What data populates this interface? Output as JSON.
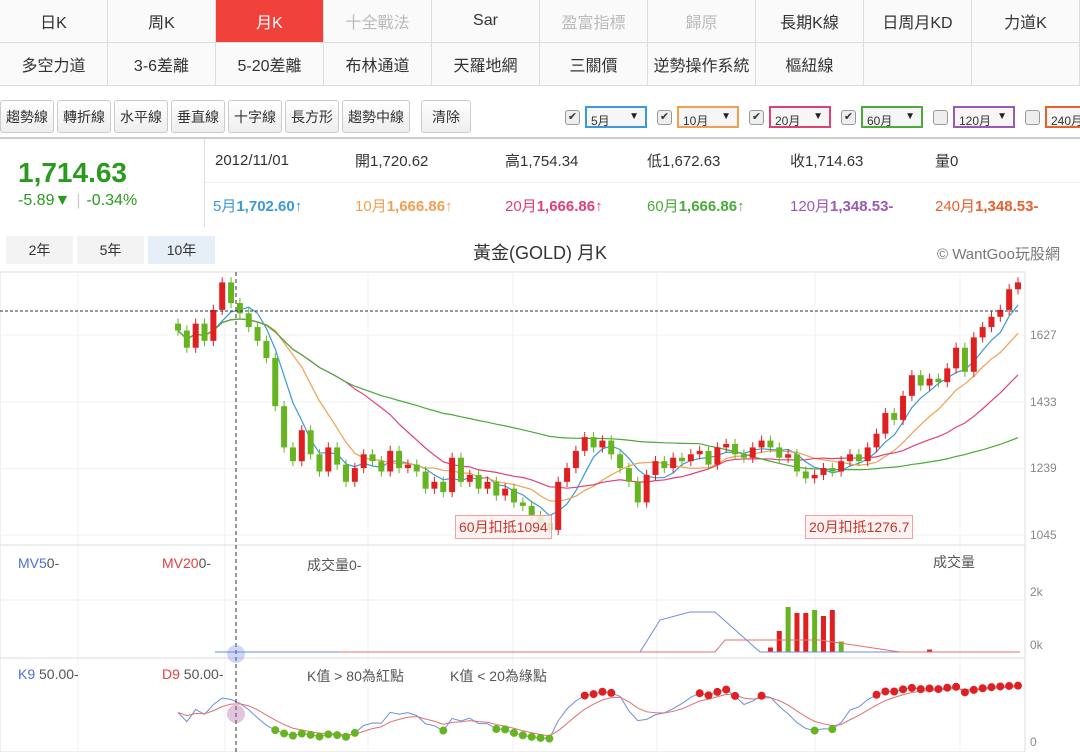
{
  "tabs": [
    {
      "label": "日K",
      "state": ""
    },
    {
      "label": "周K",
      "state": ""
    },
    {
      "label": "月K",
      "state": "active"
    },
    {
      "label": "十全戰法",
      "state": "disabled"
    },
    {
      "label": "Sar",
      "state": ""
    },
    {
      "label": "盈富指標",
      "state": "disabled"
    },
    {
      "label": "歸原",
      "state": "disabled"
    },
    {
      "label": "長期K線",
      "state": ""
    },
    {
      "label": "日周月KD",
      "state": ""
    },
    {
      "label": "力道K",
      "state": ""
    },
    {
      "label": "多空力道",
      "state": ""
    },
    {
      "label": "3-6差離",
      "state": ""
    },
    {
      "label": "5-20差離",
      "state": ""
    },
    {
      "label": "布林通道",
      "state": ""
    },
    {
      "label": "天羅地網",
      "state": ""
    },
    {
      "label": "三關價",
      "state": ""
    },
    {
      "label": "逆勢操作系統",
      "state": ""
    },
    {
      "label": "樞紐線",
      "state": ""
    },
    {
      "label": "",
      "state": "empty"
    },
    {
      "label": "",
      "state": "empty"
    }
  ],
  "tools": [
    "趨勢線",
    "轉折線",
    "水平線",
    "垂直線",
    "十字線",
    "長方形",
    "趨勢中線"
  ],
  "clear_label": "清除",
  "ma_selects": [
    {
      "label": "5月",
      "checked": true,
      "color": "#3a9ad9"
    },
    {
      "label": "10月",
      "checked": true,
      "color": "#f0a050"
    },
    {
      "label": "20月",
      "checked": true,
      "color": "#e0407a"
    },
    {
      "label": "60月",
      "checked": true,
      "color": "#4aaa3a"
    },
    {
      "label": "120月",
      "checked": false,
      "color": "#9b59b6"
    },
    {
      "label": "240月",
      "checked": false,
      "color": "#e8602c"
    }
  ],
  "quote": {
    "price": "1,714.63",
    "change": "-5.89▼",
    "change_pct": "-0.34%",
    "date": "2012/11/01",
    "open_label": "開",
    "open": "1,720.62",
    "high_label": "高",
    "high": "1,754.34",
    "low_label": "低",
    "low": "1,672.63",
    "close_label": "收",
    "close": "1,714.63",
    "vol_label": "量",
    "vol": "0"
  },
  "ma_values": [
    {
      "label": "5月",
      "value": "1,702.60↑",
      "color": "#3a9ad9"
    },
    {
      "label": "10月",
      "value": "1,666.86↑",
      "color": "#f0a050"
    },
    {
      "label": "20月",
      "value": "1,666.86↑",
      "color": "#e0407a"
    },
    {
      "label": "60月",
      "value": "1,666.86↑",
      "color": "#4aaa3a"
    },
    {
      "label": "120月",
      "value": "1,348.53-",
      "color": "#9b59b6"
    },
    {
      "label": "240月",
      "value": "1,348.53-",
      "color": "#e8602c"
    }
  ],
  "ranges": [
    {
      "label": "2年",
      "on": false
    },
    {
      "label": "5年",
      "on": false
    },
    {
      "label": "10年",
      "on": true
    }
  ],
  "chart_title": "黃金(GOLD) 月K",
  "copyright": "© WantGoo玩股網",
  "notes": {
    "n60": "60月扣抵1094",
    "n20": "20月扣抵1276.7"
  },
  "volume_panel": {
    "mv5": "MV5",
    "mv5_val": "0-",
    "mv20": "MV20",
    "mv20_val": "0-",
    "vol": "成交量0-",
    "title": "成交量",
    "ticks": [
      "2k",
      "0k"
    ]
  },
  "kd_panel": {
    "k9": "K9",
    "k9_val": "50.00-",
    "d9": "D9",
    "d9_val": "50.00-",
    "red_note": "K值 > 80為紅點",
    "green_note": "K值 < 20為綠點",
    "ticks": [
      "0"
    ]
  },
  "chart_data": {
    "type": "candlestick",
    "yticks": [
      1627,
      1433,
      1239,
      1045
    ],
    "ylim": [
      1045,
      1790
    ],
    "closes": [
      1640,
      1590,
      1660,
      1610,
      1700,
      1780,
      1720,
      1690,
      1650,
      1610,
      1560,
      1420,
      1300,
      1260,
      1350,
      1280,
      1230,
      1300,
      1250,
      1200,
      1240,
      1280,
      1260,
      1230,
      1290,
      1240,
      1250,
      1230,
      1180,
      1200,
      1170,
      1270,
      1200,
      1220,
      1180,
      1200,
      1160,
      1180,
      1140,
      1130,
      1100,
      1080,
      1060,
      1200,
      1240,
      1290,
      1330,
      1300,
      1320,
      1280,
      1240,
      1200,
      1140,
      1220,
      1260,
      1240,
      1270,
      1260,
      1280,
      1290,
      1250,
      1300,
      1310,
      1280,
      1270,
      1300,
      1320,
      1300,
      1270,
      1280,
      1230,
      1210,
      1220,
      1240,
      1230,
      1260,
      1280,
      1260,
      1300,
      1340,
      1400,
      1380,
      1450,
      1510,
      1480,
      1500,
      1490,
      1530,
      1590,
      1520,
      1620,
      1650,
      1680,
      1700,
      1760,
      1780
    ],
    "volume": [
      0,
      0,
      0,
      0,
      0,
      0,
      0,
      0,
      0,
      0,
      0,
      0,
      0,
      0,
      0,
      0,
      0,
      0,
      0,
      0,
      0,
      0,
      0,
      0,
      0,
      0,
      0,
      0,
      0,
      0,
      0,
      0,
      0,
      0,
      0,
      0,
      0,
      0,
      0,
      0,
      0,
      0,
      0,
      0,
      0,
      0,
      0,
      0,
      0,
      0,
      0,
      0,
      0,
      0,
      0,
      0,
      0,
      0,
      0,
      0,
      0,
      0,
      0,
      0,
      0,
      0,
      0,
      150,
      700,
      1500,
      1300,
      1300,
      1400,
      1200,
      1400,
      350,
      0,
      0,
      0,
      0,
      0,
      0,
      0,
      0,
      0,
      80,
      0,
      0,
      0,
      0,
      0,
      0,
      0,
      0,
      0,
      0
    ]
  }
}
